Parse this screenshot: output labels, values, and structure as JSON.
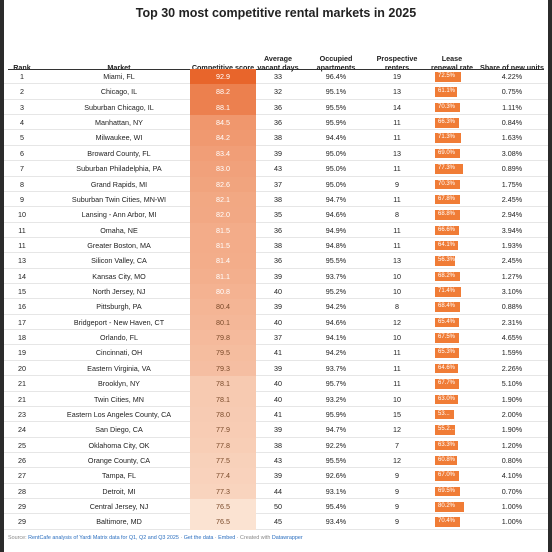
{
  "title": "Top 30 most competitive rental markets in 2025",
  "headers": {
    "rank": "Rank",
    "market": "Market",
    "score": "Competitive score",
    "vacant": "Average vacant days",
    "occupied": "Occupied apartments",
    "renters": "Prospective renters",
    "lease": "Lease renewal rate",
    "share": "Share of new units"
  },
  "colors": {
    "score_high": "#e8652b",
    "score_low": "#fbe3d2",
    "lease_bar": "#f07c36"
  },
  "rows": [
    {
      "rank": "1",
      "market": "Miami, FL",
      "score": "92.9",
      "vacant": "33",
      "occupied": "96.4%",
      "renters": "19",
      "lease": "72.5%",
      "share": "4.22%"
    },
    {
      "rank": "2",
      "market": "Chicago, IL",
      "score": "88.2",
      "vacant": "32",
      "occupied": "95.1%",
      "renters": "13",
      "lease": "61.1%",
      "share": "0.75%"
    },
    {
      "rank": "3",
      "market": "Suburban Chicago, IL",
      "score": "88.1",
      "vacant": "36",
      "occupied": "95.5%",
      "renters": "14",
      "lease": "70.3%",
      "share": "1.11%"
    },
    {
      "rank": "4",
      "market": "Manhattan, NY",
      "score": "84.5",
      "vacant": "36",
      "occupied": "95.9%",
      "renters": "11",
      "lease": "66.3%",
      "share": "0.84%"
    },
    {
      "rank": "5",
      "market": "Milwaukee, WI",
      "score": "84.2",
      "vacant": "38",
      "occupied": "94.4%",
      "renters": "11",
      "lease": "71.3%",
      "share": "1.63%"
    },
    {
      "rank": "6",
      "market": "Broward County, FL",
      "score": "83.4",
      "vacant": "39",
      "occupied": "95.0%",
      "renters": "13",
      "lease": "69.0%",
      "share": "3.08%"
    },
    {
      "rank": "7",
      "market": "Suburban Philadelphia, PA",
      "score": "83.0",
      "vacant": "43",
      "occupied": "95.0%",
      "renters": "11",
      "lease": "77.3%",
      "share": "0.89%"
    },
    {
      "rank": "8",
      "market": "Grand Rapids, MI",
      "score": "82.6",
      "vacant": "37",
      "occupied": "95.0%",
      "renters": "9",
      "lease": "70.3%",
      "share": "1.75%"
    },
    {
      "rank": "9",
      "market": "Suburban Twin Cities, MN-WI",
      "score": "82.1",
      "vacant": "38",
      "occupied": "94.7%",
      "renters": "11",
      "lease": "67.8%",
      "share": "2.45%"
    },
    {
      "rank": "10",
      "market": "Lansing - Ann Arbor, MI",
      "score": "82.0",
      "vacant": "35",
      "occupied": "94.6%",
      "renters": "8",
      "lease": "68.8%",
      "share": "2.94%"
    },
    {
      "rank": "11",
      "market": "Omaha, NE",
      "score": "81.5",
      "vacant": "36",
      "occupied": "94.9%",
      "renters": "11",
      "lease": "66.6%",
      "share": "3.94%"
    },
    {
      "rank": "11",
      "market": "Greater Boston, MA",
      "score": "81.5",
      "vacant": "38",
      "occupied": "94.8%",
      "renters": "11",
      "lease": "64.1%",
      "share": "1.93%"
    },
    {
      "rank": "13",
      "market": "Silicon Valley, CA",
      "score": "81.4",
      "vacant": "36",
      "occupied": "95.5%",
      "renters": "13",
      "lease": "56.3%",
      "share": "2.45%"
    },
    {
      "rank": "14",
      "market": "Kansas City, MO",
      "score": "81.1",
      "vacant": "39",
      "occupied": "93.7%",
      "renters": "10",
      "lease": "68.2%",
      "share": "1.27%"
    },
    {
      "rank": "15",
      "market": "North Jersey, NJ",
      "score": "80.8",
      "vacant": "40",
      "occupied": "95.2%",
      "renters": "10",
      "lease": "71.4%",
      "share": "3.10%"
    },
    {
      "rank": "16",
      "market": "Pittsburgh, PA",
      "score": "80.4",
      "vacant": "39",
      "occupied": "94.2%",
      "renters": "8",
      "lease": "68.4%",
      "share": "0.88%"
    },
    {
      "rank": "17",
      "market": "Bridgeport - New Haven, CT",
      "score": "80.1",
      "vacant": "40",
      "occupied": "94.6%",
      "renters": "12",
      "lease": "65.4%",
      "share": "2.31%"
    },
    {
      "rank": "18",
      "market": "Orlando, FL",
      "score": "79.8",
      "vacant": "37",
      "occupied": "94.1%",
      "renters": "10",
      "lease": "67.5%",
      "share": "4.65%"
    },
    {
      "rank": "19",
      "market": "Cincinnati, OH",
      "score": "79.5",
      "vacant": "41",
      "occupied": "94.2%",
      "renters": "11",
      "lease": "65.3%",
      "share": "1.59%"
    },
    {
      "rank": "20",
      "market": "Eastern Virginia, VA",
      "score": "79.3",
      "vacant": "39",
      "occupied": "93.7%",
      "renters": "11",
      "lease": "64.6%",
      "share": "2.26%"
    },
    {
      "rank": "21",
      "market": "Brooklyn, NY",
      "score": "78.1",
      "vacant": "40",
      "occupied": "95.7%",
      "renters": "11",
      "lease": "67.7%",
      "share": "5.10%"
    },
    {
      "rank": "21",
      "market": "Twin Cities, MN",
      "score": "78.1",
      "vacant": "40",
      "occupied": "93.2%",
      "renters": "10",
      "lease": "63.0%",
      "share": "1.90%"
    },
    {
      "rank": "23",
      "market": "Eastern Los Angeles County, CA",
      "score": "78.0",
      "vacant": "41",
      "occupied": "95.9%",
      "renters": "15",
      "lease": "53...",
      "share": "2.00%"
    },
    {
      "rank": "24",
      "market": "San Diego, CA",
      "score": "77.9",
      "vacant": "39",
      "occupied": "94.7%",
      "renters": "12",
      "lease": "55.2...",
      "share": "1.90%"
    },
    {
      "rank": "25",
      "market": "Oklahoma City, OK",
      "score": "77.8",
      "vacant": "38",
      "occupied": "92.2%",
      "renters": "7",
      "lease": "63.3%",
      "share": "1.20%"
    },
    {
      "rank": "26",
      "market": "Orange County, CA",
      "score": "77.5",
      "vacant": "43",
      "occupied": "95.5%",
      "renters": "12",
      "lease": "60.8%",
      "share": "0.80%"
    },
    {
      "rank": "27",
      "market": "Tampa, FL",
      "score": "77.4",
      "vacant": "39",
      "occupied": "92.6%",
      "renters": "9",
      "lease": "67.0%",
      "share": "4.10%"
    },
    {
      "rank": "28",
      "market": "Detroit, MI",
      "score": "77.3",
      "vacant": "44",
      "occupied": "93.1%",
      "renters": "9",
      "lease": "69.5%",
      "share": "0.70%"
    },
    {
      "rank": "29",
      "market": "Central Jersey, NJ",
      "score": "76.5",
      "vacant": "50",
      "occupied": "95.4%",
      "renters": "9",
      "lease": "80.2%",
      "share": "1.00%"
    },
    {
      "rank": "29",
      "market": "Baltimore, MD",
      "score": "76.5",
      "vacant": "45",
      "occupied": "93.4%",
      "renters": "9",
      "lease": "70.4%",
      "share": "1.00%"
    }
  ],
  "footer": {
    "source_label": "Source: ",
    "source_link": "RentCafe analysis of Yardi Matrix data for Q1, Q2 and Q3 2025",
    "sep1": " · ",
    "get_data": "Get the data",
    "sep2": " · ",
    "embed": "Embed",
    "created": " · Created with ",
    "tool": "Datawrapper"
  }
}
